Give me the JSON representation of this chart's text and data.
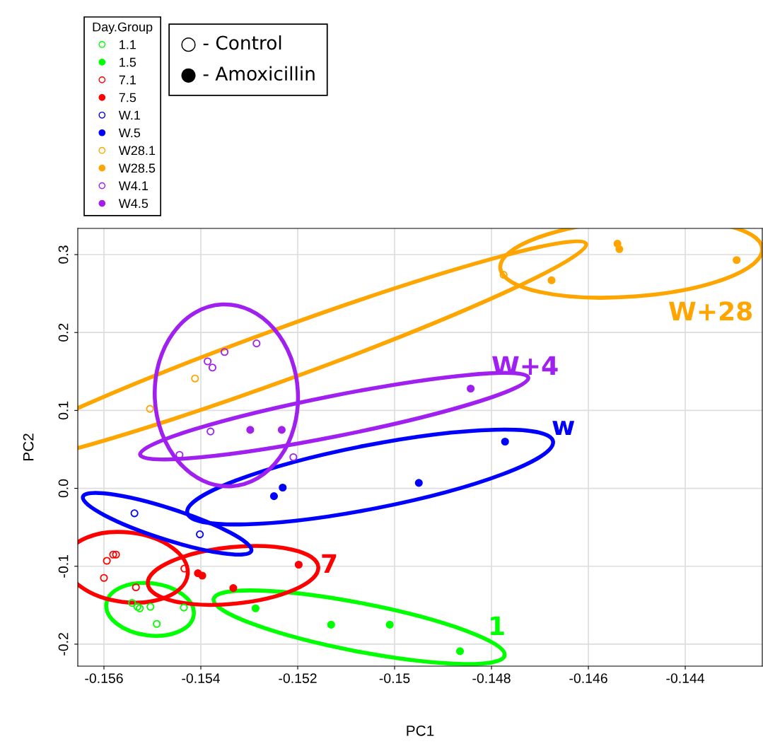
{
  "chart_data": {
    "type": "scatter",
    "xlabel": "PC1",
    "ylabel": "PC2",
    "legend_title": "Day.Group",
    "legend": "top left",
    "grid": true,
    "marker": "circle",
    "xlim": [
      -0.15654,
      -0.14241
    ],
    "ylim": [
      -0.2282,
      0.3336
    ],
    "xticks": [
      -0.156,
      -0.154,
      -0.152,
      -0.15,
      -0.148,
      -0.146,
      -0.144
    ],
    "yticks": [
      {
        "value": -0.2,
        "label": "-0.2"
      },
      {
        "value": -0.1,
        "label": "-0.1"
      },
      {
        "value": 0.0,
        "label": "0.0"
      },
      {
        "value": 0.1,
        "label": "0.1"
      },
      {
        "value": 0.2,
        "label": "0.2"
      },
      {
        "value": 0.3,
        "label": "0.3"
      }
    ],
    "series": [
      {
        "name": "1.1",
        "color": "#00ff00",
        "x": [
          -0.15542,
          -0.15531,
          -0.15526,
          -0.15504,
          -0.15491,
          -0.15435
        ],
        "values": [
          -0.147,
          -0.152,
          -0.154,
          -0.152,
          -0.174,
          -0.153
        ]
      },
      {
        "name": "1.5",
        "color": "#00ff00",
        "x": [
          -0.15287,
          -0.15131,
          -0.1501,
          -0.14865
        ],
        "values": [
          -0.154,
          -0.175,
          -0.175,
          -0.209
        ]
      },
      {
        "name": "7.1",
        "color": "#ff0000",
        "x": [
          -0.15594,
          -0.15581,
          -0.15575,
          -0.156,
          -0.15534,
          -0.15434
        ],
        "values": [
          -0.093,
          -0.085,
          -0.085,
          -0.115,
          -0.127,
          -0.103
        ]
      },
      {
        "name": "7.5",
        "color": "#ff0000",
        "x": [
          -0.15406,
          -0.15397,
          -0.15333,
          -0.15198
        ],
        "values": [
          -0.109,
          -0.112,
          -0.128,
          -0.098
        ]
      },
      {
        "name": "W.1",
        "color": "#0000ff",
        "x": [
          -0.15537,
          -0.15402
        ],
        "values": [
          -0.032,
          -0.059
        ]
      },
      {
        "name": "W.5",
        "color": "#0000ff",
        "x": [
          -0.15249,
          -0.15231,
          -0.1495,
          -0.14772
        ],
        "values": [
          -0.01,
          0.001,
          0.007,
          0.06
        ]
      },
      {
        "name": "W28.1",
        "color": "#ffa500",
        "x": [
          -0.15412,
          -0.15505,
          -0.14775
        ],
        "values": [
          0.141,
          0.102,
          0.274
        ]
      },
      {
        "name": "W28.5",
        "color": "#ffa500",
        "x": [
          -0.14676,
          -0.1454,
          -0.14536,
          -0.14294
        ],
        "values": [
          0.267,
          0.314,
          0.307,
          0.293
        ]
      },
      {
        "name": "W4.1",
        "color": "#a020f0",
        "x": [
          -0.15285,
          -0.15351,
          -0.15386,
          -0.15376,
          -0.15444,
          -0.1538,
          -0.15209
        ],
        "values": [
          0.186,
          0.175,
          0.163,
          0.155,
          0.043,
          0.073,
          0.04
        ]
      },
      {
        "name": "W4.5",
        "color": "#a020f0",
        "x": [
          -0.15298,
          -0.15233,
          -0.14843
        ],
        "values": [
          0.075,
          0.075,
          0.128
        ]
      }
    ],
    "annotations": [
      "W+28",
      "W+4",
      "w",
      "7",
      "1",
      "○ - Control",
      "● - Amoxicillin"
    ]
  }
}
